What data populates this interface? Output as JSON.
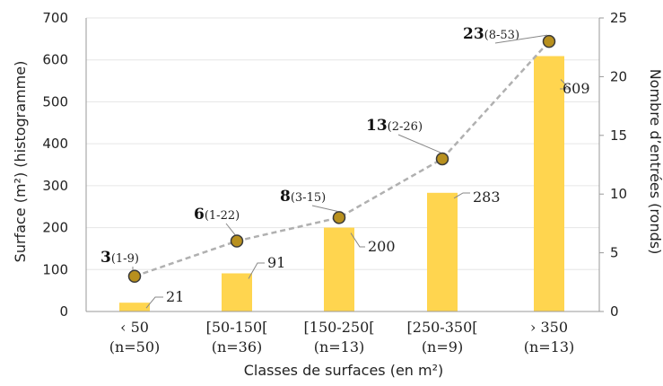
{
  "chart_data": {
    "type": "bar",
    "categories": [
      [
        "‹ 50",
        "(n=50)"
      ],
      [
        "[50-150[",
        "(n=36)"
      ],
      [
        "[150-250[",
        "(n=13)"
      ],
      [
        "[250-350[",
        "(n=9)"
      ],
      [
        "› 350",
        "(n=13)"
      ]
    ],
    "series": [
      {
        "type": "bar",
        "axis": "left",
        "values": [
          21,
          91,
          200,
          283,
          609
        ],
        "labels": [
          "21",
          "91",
          "200",
          "283",
          "609"
        ],
        "color": "#ffd54f"
      },
      {
        "type": "line",
        "axis": "right",
        "values": [
          3,
          6,
          8,
          13,
          23
        ],
        "labels": [
          "3",
          "6",
          "8",
          "13",
          "23"
        ],
        "ranges": [
          "(1-9)",
          "(1-22)",
          "(3-15)",
          "(2-26)",
          "(8-53)"
        ],
        "color": "#b0b0b0",
        "marker_fill": "#b8901e",
        "marker_stroke": "#3a3a3a"
      }
    ],
    "xlabel": "Classes de surfaces (en m²)",
    "ylabel": "Surface (m²) (histogramme)",
    "y2label": "Nombre d’entrées (ronds)",
    "ylim": [
      0,
      700
    ],
    "yticks": [
      "0",
      "100",
      "200",
      "300",
      "400",
      "500",
      "600",
      "700"
    ],
    "y2lim": [
      0,
      25
    ],
    "y2ticks": [
      "0",
      "5",
      "10",
      "15",
      "20",
      "25"
    ],
    "grid": true
  }
}
